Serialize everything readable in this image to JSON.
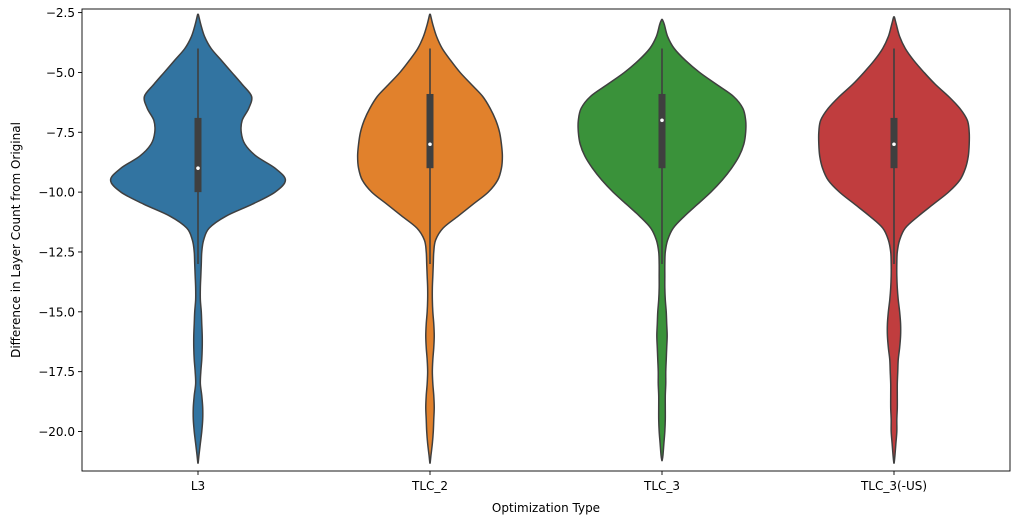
{
  "chart_data": {
    "type": "violin",
    "xlabel": "Optimization Type",
    "ylabel": "Difference in Layer Count from Original",
    "ylim": [
      -21.65,
      -2.35
    ],
    "yticks": [
      -2.5,
      -5.0,
      -7.5,
      -10.0,
      -12.5,
      -15.0,
      -17.5,
      -20.0
    ],
    "ytick_labels": [
      "−2.5",
      "−5.0",
      "−7.5",
      "−10.0",
      "−12.5",
      "−15.0",
      "−17.5",
      "−20.0"
    ],
    "grid": false,
    "categories": [
      "L3",
      "TLC_2",
      "TLC_3",
      "TLC_3(-US)"
    ],
    "series": [
      {
        "color": "#3274a1",
        "min": -21.3,
        "max": -2.6,
        "whisker_low": -13.0,
        "whisker_high": -4.0,
        "q1": -10.0,
        "median": -9.0,
        "q3": -6.9,
        "density": [
          [
            -21.3,
            0.2
          ],
          [
            -21.0,
            1.0
          ],
          [
            -20.5,
            2.5
          ],
          [
            -20.0,
            4.0
          ],
          [
            -19.5,
            5.0
          ],
          [
            -19.0,
            5.0
          ],
          [
            -18.5,
            4.0
          ],
          [
            -18.0,
            2.5
          ],
          [
            -17.5,
            3.0
          ],
          [
            -17.0,
            4.0
          ],
          [
            -16.5,
            4.5
          ],
          [
            -16.0,
            4.5
          ],
          [
            -15.5,
            4.0
          ],
          [
            -15.0,
            3.5
          ],
          [
            -14.5,
            2.5
          ],
          [
            -14.0,
            2.5
          ],
          [
            -13.5,
            3.0
          ],
          [
            -13.0,
            3.5
          ],
          [
            -12.5,
            4.0
          ],
          [
            -12.0,
            6.0
          ],
          [
            -11.5,
            12.0
          ],
          [
            -11.0,
            30.0
          ],
          [
            -10.5,
            58.0
          ],
          [
            -10.0,
            82.0
          ],
          [
            -9.5,
            93.0
          ],
          [
            -9.0,
            82.0
          ],
          [
            -8.5,
            62.0
          ],
          [
            -8.0,
            50.0
          ],
          [
            -7.5,
            46.0
          ],
          [
            -7.0,
            47.0
          ],
          [
            -6.5,
            54.0
          ],
          [
            -6.0,
            57.0
          ],
          [
            -5.5,
            47.0
          ],
          [
            -5.0,
            36.0
          ],
          [
            -4.5,
            25.0
          ],
          [
            -4.0,
            14.0
          ],
          [
            -3.5,
            7.0
          ],
          [
            -3.0,
            3.0
          ],
          [
            -2.6,
            0.5
          ]
        ]
      },
      {
        "color": "#e1812c",
        "min": -21.3,
        "max": -2.6,
        "whisker_low": -13.0,
        "whisker_high": -4.0,
        "q1": -9.0,
        "median": -8.0,
        "q3": -5.9,
        "density": [
          [
            -21.3,
            0.2
          ],
          [
            -21.0,
            1.0
          ],
          [
            -20.5,
            2.5
          ],
          [
            -20.0,
            3.5
          ],
          [
            -19.5,
            4.0
          ],
          [
            -19.0,
            4.5
          ],
          [
            -18.5,
            4.0
          ],
          [
            -18.0,
            3.0
          ],
          [
            -17.5,
            2.5
          ],
          [
            -17.0,
            3.0
          ],
          [
            -16.5,
            4.0
          ],
          [
            -16.0,
            4.5
          ],
          [
            -15.5,
            4.0
          ],
          [
            -15.0,
            3.0
          ],
          [
            -14.5,
            2.5
          ],
          [
            -14.0,
            2.5
          ],
          [
            -13.5,
            3.0
          ],
          [
            -13.0,
            3.5
          ],
          [
            -12.5,
            4.0
          ],
          [
            -12.0,
            6.0
          ],
          [
            -11.5,
            14.0
          ],
          [
            -11.0,
            30.0
          ],
          [
            -10.5,
            46.0
          ],
          [
            -10.0,
            62.0
          ],
          [
            -9.5,
            72.0
          ],
          [
            -9.0,
            76.0
          ],
          [
            -8.5,
            77.0
          ],
          [
            -8.0,
            76.0
          ],
          [
            -7.5,
            74.0
          ],
          [
            -7.0,
            70.0
          ],
          [
            -6.5,
            64.0
          ],
          [
            -6.0,
            56.0
          ],
          [
            -5.5,
            44.0
          ],
          [
            -5.0,
            32.0
          ],
          [
            -4.5,
            22.0
          ],
          [
            -4.0,
            13.0
          ],
          [
            -3.5,
            7.0
          ],
          [
            -3.0,
            3.0
          ],
          [
            -2.6,
            0.5
          ]
        ]
      },
      {
        "color": "#3a923a",
        "min": -21.2,
        "max": -2.8,
        "whisker_low": -13.0,
        "whisker_high": -4.0,
        "q1": -9.0,
        "median": -7.0,
        "q3": -5.9,
        "density": [
          [
            -21.2,
            0.2
          ],
          [
            -21.0,
            1.0
          ],
          [
            -20.5,
            2.0
          ],
          [
            -20.0,
            3.0
          ],
          [
            -19.5,
            3.5
          ],
          [
            -19.0,
            3.5
          ],
          [
            -18.5,
            3.5
          ],
          [
            -18.0,
            4.0
          ],
          [
            -17.5,
            4.0
          ],
          [
            -17.0,
            4.5
          ],
          [
            -16.5,
            5.0
          ],
          [
            -16.0,
            5.5
          ],
          [
            -15.5,
            5.0
          ],
          [
            -15.0,
            4.5
          ],
          [
            -14.5,
            3.5
          ],
          [
            -14.0,
            3.0
          ],
          [
            -13.5,
            3.0
          ],
          [
            -13.0,
            3.0
          ],
          [
            -12.5,
            3.5
          ],
          [
            -12.0,
            6.0
          ],
          [
            -11.5,
            12.0
          ],
          [
            -11.0,
            24.0
          ],
          [
            -10.5,
            38.0
          ],
          [
            -10.0,
            52.0
          ],
          [
            -9.5,
            64.0
          ],
          [
            -9.0,
            74.0
          ],
          [
            -8.5,
            82.0
          ],
          [
            -8.0,
            87.0
          ],
          [
            -7.5,
            89.0
          ],
          [
            -7.0,
            89.0
          ],
          [
            -6.5,
            86.0
          ],
          [
            -6.0,
            76.0
          ],
          [
            -5.5,
            58.0
          ],
          [
            -5.0,
            40.0
          ],
          [
            -4.5,
            25.0
          ],
          [
            -4.0,
            13.0
          ],
          [
            -3.5,
            6.0
          ],
          [
            -3.0,
            2.5
          ],
          [
            -2.8,
            0.5
          ]
        ]
      },
      {
        "color": "#c03d3e",
        "min": -21.3,
        "max": -2.7,
        "whisker_low": -13.0,
        "whisker_high": -4.0,
        "q1": -9.0,
        "median": -8.0,
        "q3": -6.9,
        "density": [
          [
            -21.3,
            0.2
          ],
          [
            -21.0,
            1.0
          ],
          [
            -20.5,
            2.0
          ],
          [
            -20.0,
            3.0
          ],
          [
            -19.5,
            3.0
          ],
          [
            -19.0,
            3.5
          ],
          [
            -18.5,
            3.5
          ],
          [
            -18.0,
            3.5
          ],
          [
            -17.5,
            4.0
          ],
          [
            -17.0,
            4.5
          ],
          [
            -16.5,
            6.0
          ],
          [
            -16.0,
            7.0
          ],
          [
            -15.5,
            7.0
          ],
          [
            -15.0,
            6.0
          ],
          [
            -14.5,
            4.5
          ],
          [
            -14.0,
            3.5
          ],
          [
            -13.5,
            3.0
          ],
          [
            -13.0,
            3.0
          ],
          [
            -12.5,
            3.5
          ],
          [
            -12.0,
            6.0
          ],
          [
            -11.5,
            12.0
          ],
          [
            -11.0,
            26.0
          ],
          [
            -10.5,
            42.0
          ],
          [
            -10.0,
            58.0
          ],
          [
            -9.5,
            70.0
          ],
          [
            -9.0,
            76.0
          ],
          [
            -8.5,
            79.0
          ],
          [
            -8.0,
            80.0
          ],
          [
            -7.5,
            80.0
          ],
          [
            -7.0,
            78.0
          ],
          [
            -6.5,
            70.0
          ],
          [
            -6.0,
            58.0
          ],
          [
            -5.5,
            44.0
          ],
          [
            -5.0,
            32.0
          ],
          [
            -4.5,
            21.0
          ],
          [
            -4.0,
            12.0
          ],
          [
            -3.5,
            6.0
          ],
          [
            -3.0,
            2.5
          ],
          [
            -2.7,
            0.5
          ]
        ]
      }
    ]
  }
}
